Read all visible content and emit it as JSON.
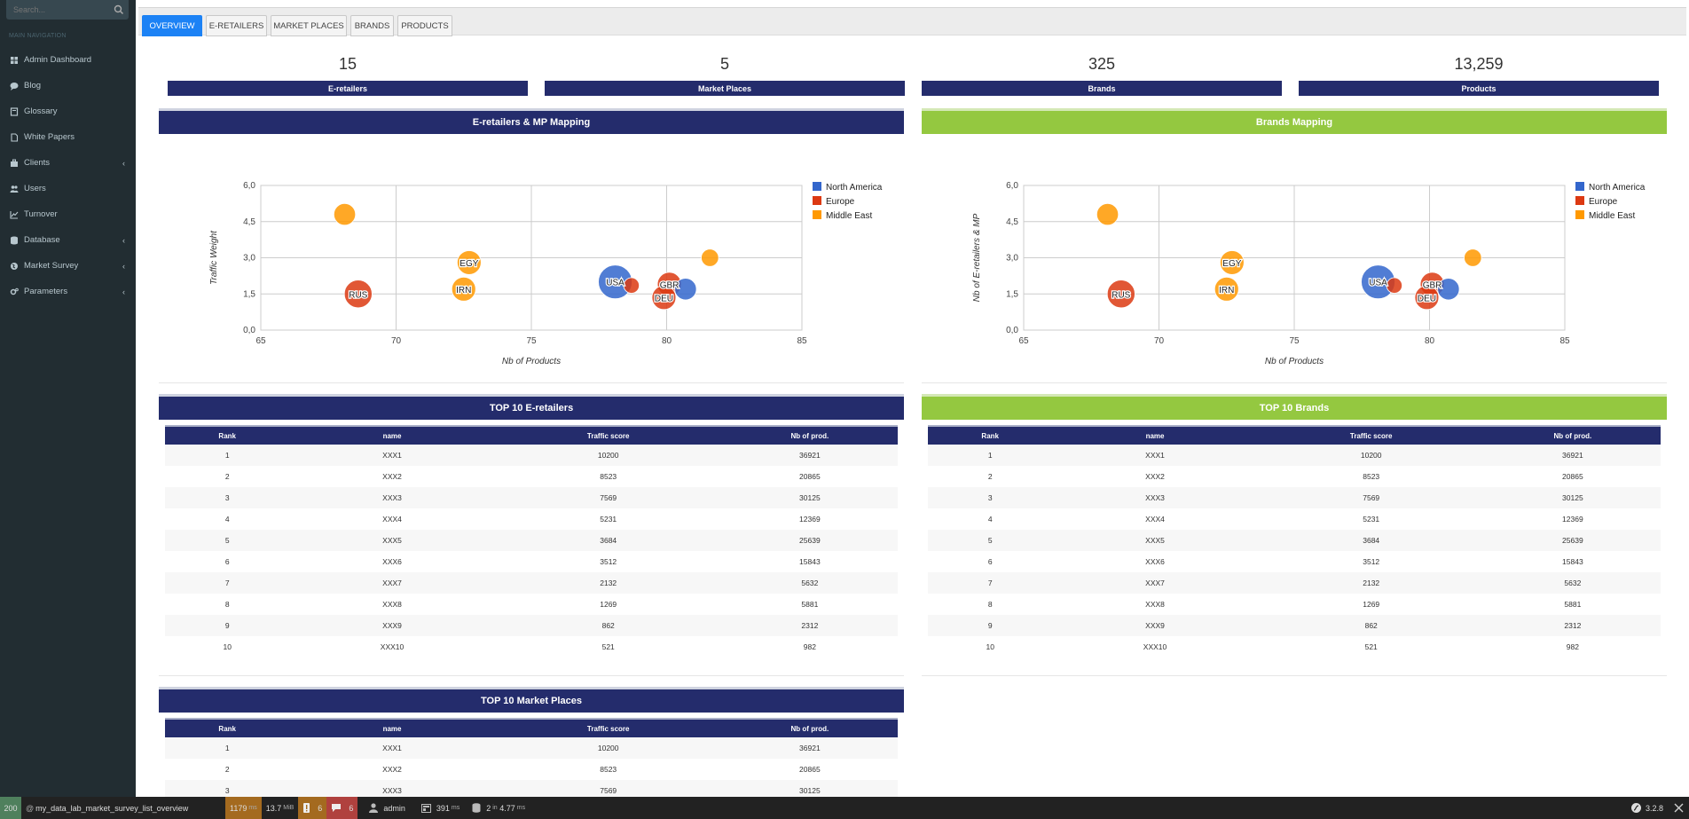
{
  "sidebar": {
    "search_placeholder": "Search...",
    "nav_header": "MAIN NAVIGATION",
    "items": [
      {
        "label": "Admin Dashboard",
        "icon": "dashboard-icon",
        "chevron": ""
      },
      {
        "label": "Blog",
        "icon": "chat-icon",
        "chevron": ""
      },
      {
        "label": "Glossary",
        "icon": "book-icon",
        "chevron": ""
      },
      {
        "label": "White Papers",
        "icon": "file-icon",
        "chevron": ""
      },
      {
        "label": "Clients",
        "icon": "briefcase-icon",
        "chevron": "‹"
      },
      {
        "label": "Users",
        "icon": "users-icon",
        "chevron": ""
      },
      {
        "label": "Turnover",
        "icon": "line-chart-icon",
        "chevron": ""
      },
      {
        "label": "Database",
        "icon": "database-icon",
        "chevron": "‹"
      },
      {
        "label": "Market Survey",
        "icon": "globe-icon",
        "chevron": "‹"
      },
      {
        "label": "Parameters",
        "icon": "cogs-icon",
        "chevron": "‹"
      }
    ]
  },
  "tabs": [
    {
      "label": "OVERVIEW",
      "active": true
    },
    {
      "label": "E-RETAILERS",
      "active": false
    },
    {
      "label": "MARKET PLACES",
      "active": false
    },
    {
      "label": "BRANDS",
      "active": false
    },
    {
      "label": "PRODUCTS",
      "active": false
    }
  ],
  "kpis": [
    {
      "value": "15",
      "label": "E-retailers"
    },
    {
      "value": "5",
      "label": "Market Places"
    },
    {
      "value": "325",
      "label": "Brands"
    },
    {
      "value": "13,259",
      "label": "Products"
    }
  ],
  "panels": {
    "mapping_left": "E-retailers & MP Mapping",
    "mapping_right": "Brands Mapping",
    "top_eretailers": "TOP 10 E-retailers",
    "top_brands": "TOP 10 Brands",
    "top_marketplaces": "TOP 10 Market Places"
  },
  "chart_data": [
    {
      "type": "scatter",
      "title": "",
      "xlabel": "Nb of Products",
      "ylabel": "Traffic Weight",
      "xlim": [
        65,
        85
      ],
      "ylim": [
        0,
        6
      ],
      "x_ticks": [
        "65",
        "70",
        "75",
        "80",
        "85"
      ],
      "y_ticks": [
        "0,0",
        "1,5",
        "3,0",
        "4,5",
        "6,0"
      ],
      "grid": true,
      "legend_position": "right",
      "series": [
        {
          "name": "North America",
          "color": "#3366cc",
          "points": [
            {
              "x": 78.1,
              "y": 2.0,
              "size": 1.0,
              "label": "USA"
            },
            {
              "x": 80.7,
              "y": 1.7,
              "size": 0.3,
              "label": ""
            }
          ]
        },
        {
          "name": "Europe",
          "color": "#dc3912",
          "points": [
            {
              "x": 68.6,
              "y": 1.5,
              "size": 0.6,
              "label": "RUS"
            },
            {
              "x": 80.1,
              "y": 1.9,
              "size": 0.4,
              "label": "GBR"
            },
            {
              "x": 79.9,
              "y": 1.35,
              "size": 0.4,
              "label": "DEU"
            },
            {
              "x": 78.7,
              "y": 1.85,
              "size": 0.1,
              "label": ""
            }
          ]
        },
        {
          "name": "Middle East",
          "color": "#ff9900",
          "points": [
            {
              "x": 68.1,
              "y": 4.8,
              "size": 0.3,
              "label": ""
            },
            {
              "x": 72.7,
              "y": 2.8,
              "size": 0.4,
              "label": "EGY"
            },
            {
              "x": 72.5,
              "y": 1.7,
              "size": 0.4,
              "label": "IRN"
            },
            {
              "x": 81.6,
              "y": 3.0,
              "size": 0.15,
              "label": ""
            }
          ]
        }
      ]
    },
    {
      "type": "scatter",
      "title": "",
      "xlabel": "Nb of Products",
      "ylabel": "Nb of E-retailers & MP",
      "xlim": [
        65,
        85
      ],
      "ylim": [
        0,
        6
      ],
      "x_ticks": [
        "65",
        "70",
        "75",
        "80",
        "85"
      ],
      "y_ticks": [
        "0,0",
        "1,5",
        "3,0",
        "4,5",
        "6,0"
      ],
      "grid": true,
      "legend_position": "right",
      "series": [
        {
          "name": "North America",
          "color": "#3366cc",
          "points": [
            {
              "x": 78.1,
              "y": 2.0,
              "size": 1.0,
              "label": "USA"
            },
            {
              "x": 80.7,
              "y": 1.7,
              "size": 0.3,
              "label": ""
            }
          ]
        },
        {
          "name": "Europe",
          "color": "#dc3912",
          "points": [
            {
              "x": 68.6,
              "y": 1.5,
              "size": 0.6,
              "label": "RUS"
            },
            {
              "x": 80.1,
              "y": 1.9,
              "size": 0.4,
              "label": "GBR"
            },
            {
              "x": 79.9,
              "y": 1.35,
              "size": 0.4,
              "label": "DEU"
            },
            {
              "x": 78.7,
              "y": 1.85,
              "size": 0.1,
              "label": ""
            }
          ]
        },
        {
          "name": "Middle East",
          "color": "#ff9900",
          "points": [
            {
              "x": 68.1,
              "y": 4.8,
              "size": 0.3,
              "label": ""
            },
            {
              "x": 72.7,
              "y": 2.8,
              "size": 0.4,
              "label": "EGY"
            },
            {
              "x": 72.5,
              "y": 1.7,
              "size": 0.4,
              "label": "IRN"
            },
            {
              "x": 81.6,
              "y": 3.0,
              "size": 0.15,
              "label": ""
            }
          ]
        }
      ]
    }
  ],
  "table_headers": [
    "Rank",
    "name",
    "Traffic score",
    "Nb of prod."
  ],
  "ranking_rows": [
    [
      "1",
      "XXX1",
      "10200",
      "36921"
    ],
    [
      "2",
      "XXX2",
      "8523",
      "20865"
    ],
    [
      "3",
      "XXX3",
      "7569",
      "30125"
    ],
    [
      "4",
      "XXX4",
      "5231",
      "12369"
    ],
    [
      "5",
      "XXX5",
      "3684",
      "25639"
    ],
    [
      "6",
      "XXX6",
      "3512",
      "15843"
    ],
    [
      "7",
      "XXX7",
      "2132",
      "5632"
    ],
    [
      "8",
      "XXX8",
      "1269",
      "5881"
    ],
    [
      "9",
      "XXX9",
      "862",
      "2312"
    ],
    [
      "10",
      "XXX10",
      "521",
      "982"
    ]
  ],
  "marketplace_rows": [
    [
      "1",
      "XXX1",
      "10200",
      "36921"
    ],
    [
      "2",
      "XXX2",
      "8523",
      "20865"
    ],
    [
      "3",
      "XXX3",
      "7569",
      "30125"
    ]
  ],
  "footer": {
    "status": "200",
    "route": "my_data_lab_market_survey_list_overview",
    "time": "1179",
    "time_unit": "ms",
    "memory": "13.7",
    "memory_unit": "MiB",
    "warnings": "6",
    "errors": "6",
    "user": "admin",
    "render_time": "391",
    "render_unit": "ms",
    "db_queries": "2",
    "db_in": "in",
    "db_time": "4.77",
    "db_unit": "ms",
    "version": "3.2.8",
    "colors": {
      "status": "#4f805d",
      "time": "#a46a1f",
      "warnings": "#a46a1f",
      "errors": "#b0413e"
    }
  }
}
